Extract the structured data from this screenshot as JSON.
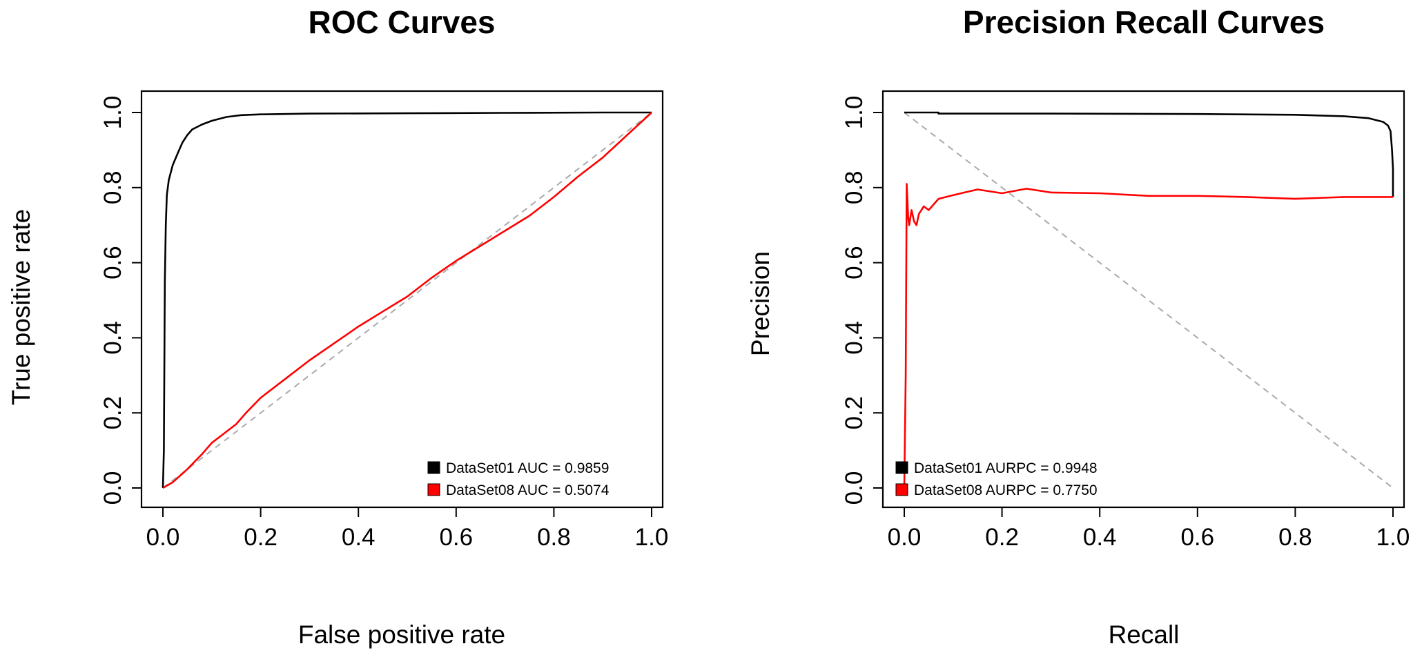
{
  "chart_data": [
    {
      "type": "line",
      "title": "ROC Curves",
      "xlabel": "False positive rate",
      "ylabel": "True positive rate",
      "xlim": [
        0,
        1
      ],
      "ylim": [
        0,
        1
      ],
      "xticks": [
        "0.0",
        "0.2",
        "0.4",
        "0.6",
        "0.8",
        "1.0"
      ],
      "yticks": [
        "0.0",
        "0.2",
        "0.4",
        "0.6",
        "0.8",
        "1.0"
      ],
      "grid": false,
      "legend_position": "bottom-right",
      "legend": [
        "DataSet01 AUC = 0.9859",
        "DataSet08 AUC = 0.5074"
      ],
      "reference_line": {
        "x": [
          0,
          1
        ],
        "y": [
          0,
          1
        ],
        "color": "#aaaaaa",
        "style": "dashed"
      },
      "series": [
        {
          "color": "#000000",
          "x": [
            0,
            0.002,
            0.004,
            0.006,
            0.008,
            0.012,
            0.02,
            0.03,
            0.04,
            0.05,
            0.06,
            0.08,
            0.1,
            0.13,
            0.16,
            0.2,
            0.3,
            0.5,
            0.7,
            0.9,
            1.0
          ],
          "y": [
            0,
            0.1,
            0.55,
            0.7,
            0.78,
            0.82,
            0.86,
            0.89,
            0.92,
            0.94,
            0.955,
            0.968,
            0.978,
            0.988,
            0.993,
            0.995,
            0.997,
            0.998,
            0.999,
            1.0,
            1.0
          ]
        },
        {
          "color": "#ff0000",
          "x": [
            0,
            0.02,
            0.05,
            0.08,
            0.1,
            0.15,
            0.17,
            0.2,
            0.25,
            0.3,
            0.35,
            0.4,
            0.45,
            0.5,
            0.55,
            0.6,
            0.65,
            0.7,
            0.75,
            0.8,
            0.85,
            0.9,
            0.95,
            1.0
          ],
          "y": [
            0,
            0.015,
            0.05,
            0.09,
            0.12,
            0.17,
            0.2,
            0.24,
            0.29,
            0.34,
            0.385,
            0.43,
            0.47,
            0.51,
            0.56,
            0.605,
            0.645,
            0.685,
            0.725,
            0.775,
            0.83,
            0.88,
            0.94,
            1.0
          ]
        }
      ]
    },
    {
      "type": "line",
      "title": "Precision Recall Curves",
      "xlabel": "Recall",
      "ylabel": "Precision",
      "xlim": [
        0,
        1
      ],
      "ylim": [
        0,
        1
      ],
      "xticks": [
        "0.0",
        "0.2",
        "0.4",
        "0.6",
        "0.8",
        "1.0"
      ],
      "yticks": [
        "0.0",
        "0.2",
        "0.4",
        "0.6",
        "0.8",
        "1.0"
      ],
      "grid": false,
      "legend_position": "bottom-left",
      "legend": [
        "DataSet01 AURPC = 0.9948",
        "DataSet08 AURPC = 0.7750"
      ],
      "reference_line": {
        "x": [
          0,
          1
        ],
        "y": [
          1,
          0
        ],
        "color": "#aaaaaa",
        "style": "dashed"
      },
      "series": [
        {
          "color": "#000000",
          "x": [
            0,
            0.07,
            0.07,
            0.3,
            0.6,
            0.8,
            0.9,
            0.95,
            0.98,
            0.99,
            0.995,
            0.998,
            1.0,
            1.0
          ],
          "y": [
            1.0,
            1.0,
            0.997,
            0.997,
            0.996,
            0.994,
            0.99,
            0.985,
            0.975,
            0.965,
            0.95,
            0.9,
            0.85,
            0.775
          ]
        },
        {
          "color": "#ff0000",
          "x": [
            0,
            0.003,
            0.005,
            0.008,
            0.01,
            0.015,
            0.02,
            0.025,
            0.03,
            0.04,
            0.05,
            0.07,
            0.1,
            0.15,
            0.2,
            0.25,
            0.3,
            0.4,
            0.5,
            0.6,
            0.7,
            0.8,
            0.9,
            1.0
          ],
          "y": [
            0,
            0.3,
            0.81,
            0.72,
            0.7,
            0.74,
            0.71,
            0.7,
            0.73,
            0.75,
            0.74,
            0.77,
            0.78,
            0.795,
            0.785,
            0.797,
            0.787,
            0.785,
            0.778,
            0.778,
            0.775,
            0.77,
            0.775,
            0.775
          ]
        }
      ]
    }
  ]
}
